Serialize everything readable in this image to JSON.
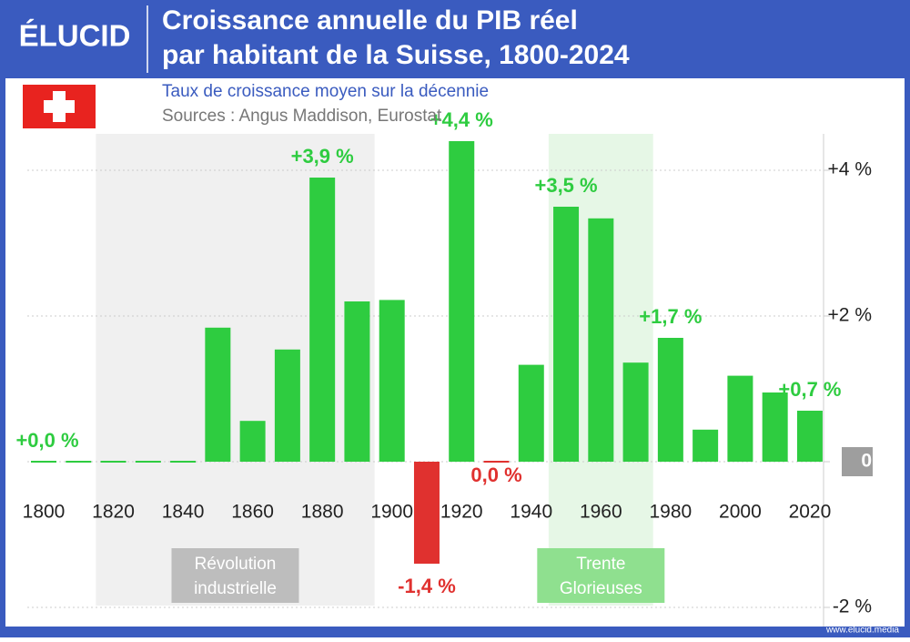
{
  "branding": {
    "logo": "ÉLUCID",
    "footer": "www.elucid.media"
  },
  "chart_data": {
    "type": "bar",
    "title": [
      "Croissance annuelle du PIB réel",
      "par habitant de la Suisse, 1800-2024"
    ],
    "subtitle": "Taux de croissance moyen sur la décennie",
    "source": "Sources : Angus Maddison, Eurostat",
    "categories": [
      "1800",
      null,
      "1820",
      null,
      "1840",
      null,
      "1860",
      null,
      "1880",
      null,
      "1900",
      null,
      "1920",
      null,
      "1940",
      null,
      "1960",
      null,
      "1980",
      null,
      "2000",
      null,
      "2020"
    ],
    "values": [
      0.0,
      0.0,
      0.0,
      0.0,
      0.0,
      1.84,
      0.56,
      1.54,
      3.9,
      2.2,
      2.22,
      -1.4,
      4.4,
      0.0,
      1.33,
      3.5,
      3.34,
      1.36,
      1.7,
      0.44,
      1.18,
      0.95,
      0.7
    ],
    "value_labels": [
      "+0,0 %",
      null,
      null,
      null,
      null,
      null,
      null,
      null,
      "+3,9 %",
      null,
      null,
      "-1,4 %",
      "+4,4 %",
      "0,0 %",
      null,
      "+3,5 %",
      null,
      null,
      "+1,7 %",
      null,
      null,
      null,
      "+0,7 %"
    ],
    "colors": [
      "#2ecc40",
      "#2ecc40",
      "#2ecc40",
      "#2ecc40",
      "#2ecc40",
      "#2ecc40",
      "#2ecc40",
      "#2ecc40",
      "#2ecc40",
      "#2ecc40",
      "#2ecc40",
      "#e0312f",
      "#2ecc40",
      "#e0312f",
      "#2ecc40",
      "#2ecc40",
      "#2ecc40",
      "#2ecc40",
      "#2ecc40",
      "#2ecc40",
      "#2ecc40",
      "#2ecc40",
      "#2ecc40"
    ],
    "ylim": [
      -2.2,
      4.5
    ],
    "yticks": [
      {
        "value": -2,
        "label": "-2 %"
      },
      0,
      {
        "value": 2,
        "label": "+2 %"
      },
      {
        "value": 4,
        "label": "+4 %"
      }
    ],
    "grid": true,
    "spans": [
      {
        "from": 1815,
        "to": 1895,
        "label": [
          "Révolution",
          "industrielle"
        ],
        "color": "#f0f0f0",
        "label_color": "#bdbdbd"
      },
      {
        "from": 1945,
        "to": 1975,
        "label": [
          "Trente",
          "Glorieuses"
        ],
        "color": "#e6f7e6",
        "label_color": "#8fe08f"
      }
    ]
  }
}
